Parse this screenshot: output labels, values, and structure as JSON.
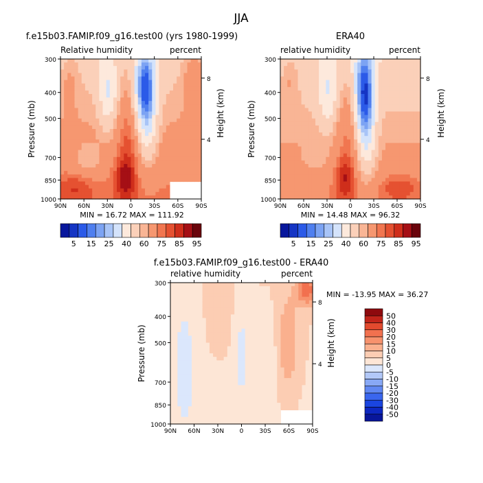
{
  "season_title": "JJA",
  "colors": {
    "abs": [
      "#08179c",
      "#1535c4",
      "#2b5ae8",
      "#4f7fef",
      "#7ca3f3",
      "#a8c4f7",
      "#d4e3fb",
      "#fde9dc",
      "#fbd0b9",
      "#f9b595",
      "#f69770",
      "#f17650",
      "#e55131",
      "#cf2e1b",
      "#a50f15",
      "#6a040c"
    ],
    "diff": [
      "#08169a",
      "#0d27c0",
      "#1a45e0",
      "#3a66ee",
      "#6188f2",
      "#88a8f5",
      "#b2c8f8",
      "#dbe7fc",
      "#fde6d6",
      "#fccdb3",
      "#fab08e",
      "#f7926d",
      "#f2714f",
      "#e24a2e",
      "#c1241a",
      "#8e0a0e"
    ]
  },
  "chart_data": [
    {
      "type": "heatmap",
      "title": "f.e15b03.FAMIP.f09_g16.test00 (yrs 1980-1999)",
      "left_label": "Relative humidity",
      "right_label": "percent",
      "ylabel": "Pressure (mb)",
      "right_axis_label": "Height (km)",
      "x_ticks": [
        "90N",
        "60N",
        "30N",
        "0",
        "30S",
        "60S",
        "90S"
      ],
      "y_ticks": [
        "300",
        "400",
        "500",
        "700",
        "850",
        "1000"
      ],
      "height_ticks": [
        "8",
        "4"
      ],
      "stats": "MIN =  16.72   MAX = 111.92",
      "colorbar_labels": [
        "5",
        "15",
        "25",
        "40",
        "60",
        "75",
        "85",
        "95"
      ]
    },
    {
      "type": "heatmap",
      "title": "ERA40",
      "left_label": "relative humidity",
      "right_label": "percent",
      "ylabel": "Pressure (mb)",
      "right_axis_label": "Height (km)",
      "x_ticks": [
        "90N",
        "60N",
        "30N",
        "0",
        "30S",
        "60S",
        "90S"
      ],
      "y_ticks": [
        "300",
        "400",
        "500",
        "700",
        "850",
        "1000"
      ],
      "height_ticks": [
        "8",
        "4"
      ],
      "stats": "MIN =  14.48   MAX =  96.32",
      "colorbar_labels": [
        "5",
        "15",
        "25",
        "40",
        "60",
        "75",
        "85",
        "95"
      ]
    },
    {
      "type": "heatmap",
      "title": "f.e15b03.FAMIP.f09_g16.test00 - ERA40",
      "left_label": "relative humidity",
      "right_label": "percent",
      "ylabel": "Pressure (mb)",
      "right_axis_label": "Height (km)",
      "x_ticks": [
        "90N",
        "60N",
        "30N",
        "0",
        "30S",
        "60S",
        "90S"
      ],
      "y_ticks": [
        "300",
        "400",
        "500",
        "700",
        "850",
        "1000"
      ],
      "height_ticks": [
        "8",
        "4"
      ],
      "stats": "MIN = -13.95   MAX =  36.27",
      "colorbar_labels": [
        "50",
        "40",
        "30",
        "20",
        "15",
        "10",
        "5",
        "0",
        "-5",
        "-10",
        "-15",
        "-20",
        "-30",
        "-40",
        "-50"
      ]
    }
  ]
}
